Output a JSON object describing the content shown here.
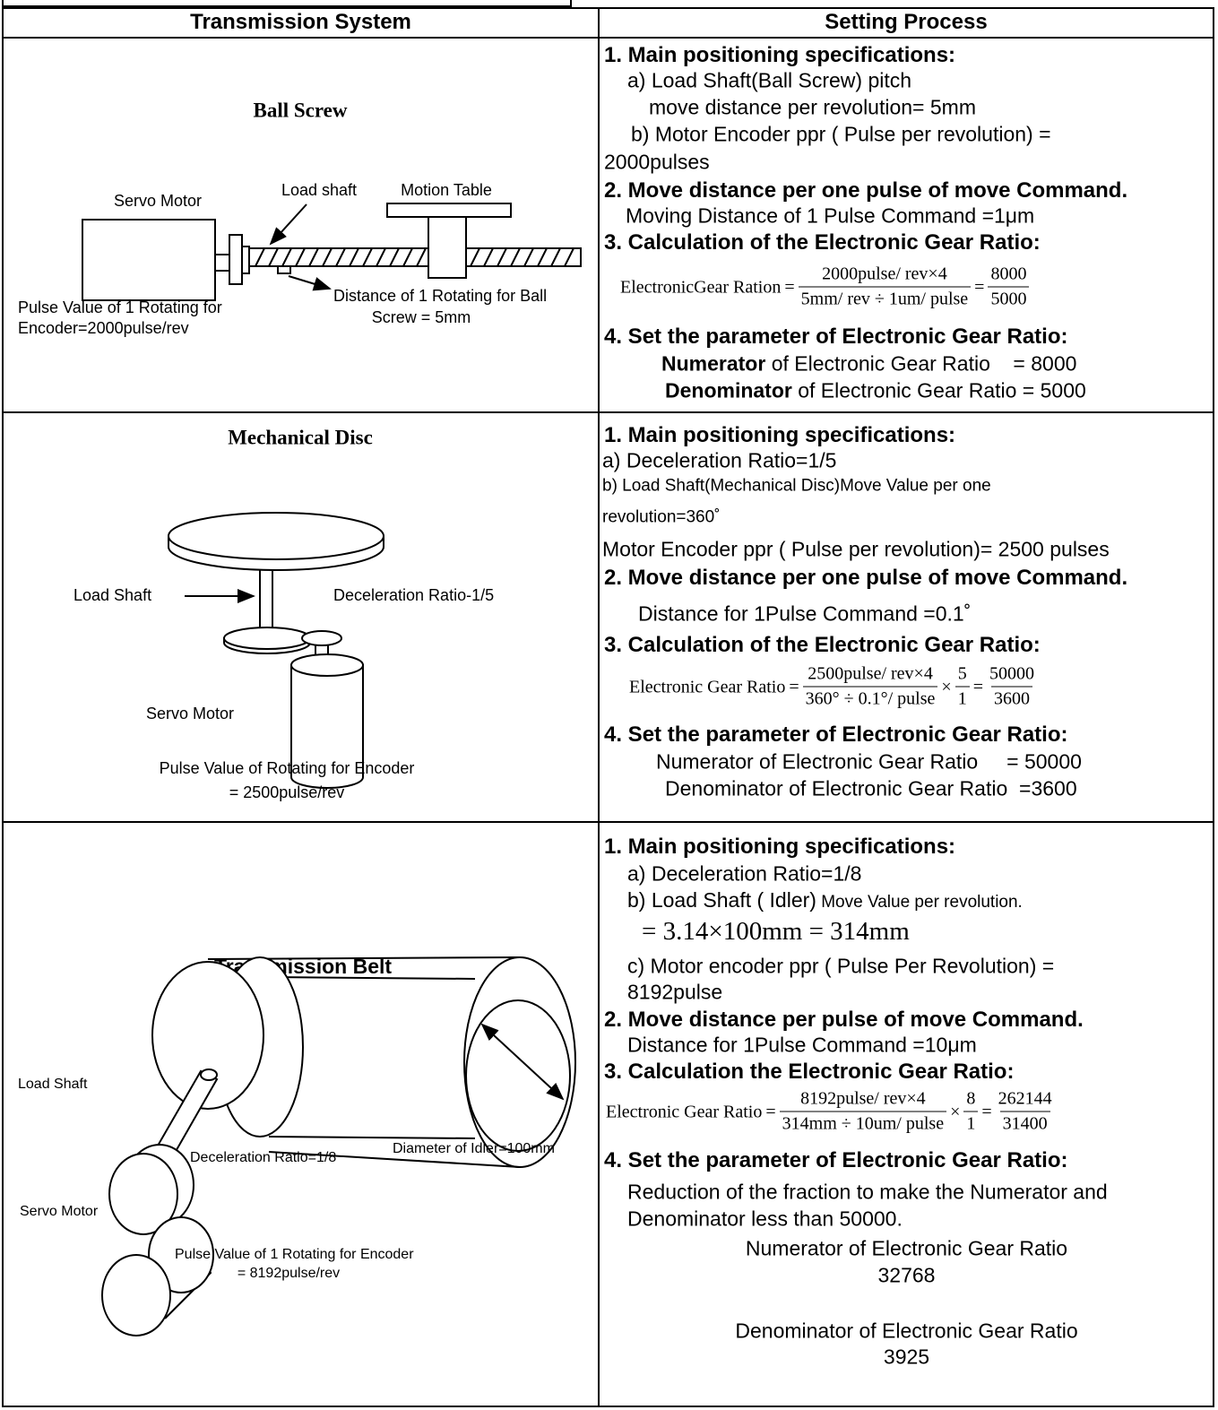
{
  "table": {
    "headers": [
      "Transmission System",
      "Setting Process"
    ],
    "rows": [
      {
        "system": {
          "title": "Ball Screw",
          "labels": [
            "Servo Motor",
            "Load shaft",
            "Motion Table",
            "Pulse Value of 1 Rotating for",
            "Encoder=2000pulse/rev",
            "Distance of 1 Rotating for Ball",
            "Screw = 5mm"
          ]
        },
        "process": [
          "1. Main positioning specifications:",
          "a) Load Shaft(Ball Screw) pitch",
          "move distance per revolution= 5mm",
          "b) Motor Encoder ppr ( Pulse per revolution) =",
          "2000pulses",
          "2. Move distance per one pulse of move Command.",
          "Moving Distance of 1 Pulse Command =1μm",
          "3. Calculation of the Electronic Gear Ratio:",
          {
            "formula": {
              "label": "ElectronicGear Ration",
              "ops": [
                "=",
                "="
              ],
              "terms": [
                [
                  "2000pulse/ rev×4",
                  "5mm/ rev ÷ 1um/ pulse"
                ],
                [
                  "8000",
                  "5000"
                ]
              ]
            }
          },
          "4. Set the parameter of Electronic Gear Ratio:",
          {
            "lead": "Numerator",
            "text": " of Electronic Gear Ratio    = 8000"
          },
          {
            "lead": "Denominator",
            "text": " of Electronic Gear Ratio = 5000"
          }
        ]
      },
      {
        "system": {
          "title": "Mechanical Disc",
          "labels": [
            "Load Shaft",
            "Deceleration Ratio-1/5",
            "Servo Motor",
            "Pulse Value of Rotating for Encoder",
            "= 2500pulse/rev"
          ]
        },
        "process": [
          "1. Main positioning specifications:",
          "a) Deceleration Ratio=1/5",
          "b) Load Shaft(Mechanical Disc)Move Value per one",
          "revolution=360˚",
          "Motor Encoder ppr ( Pulse per revolution)= 2500 pulses",
          "2. Move distance per one pulse of move Command.",
          "Distance for 1Pulse Command =0.1˚",
          "3. Calculation of the Electronic Gear Ratio:",
          {
            "formula": {
              "label": "Electronic Gear Ratio",
              "ops": [
                "=",
                "×",
                "="
              ],
              "terms": [
                [
                  "2500pulse/ rev×4",
                  "360° ÷ 0.1°/ pulse"
                ],
                [
                  "5",
                  "1"
                ],
                [
                  "50000",
                  "3600"
                ]
              ]
            }
          },
          "4. Set the parameter of Electronic Gear Ratio:",
          "Numerator of Electronic Gear Ratio     = 50000",
          "Denominator of Electronic Gear Ratio  =3600"
        ]
      },
      {
        "system": {
          "title": "Transmission Belt",
          "labels": [
            "Load Shaft",
            "Deceleration Ratio=1/8",
            "Diameter of Idler=100mm",
            "Servo Motor",
            "Pulse Value of 1 Rotating for Encoder",
            "= 8192pulse/rev"
          ]
        },
        "process": [
          "1. Main positioning specifications:",
          "a) Deceleration Ratio=1/8",
          {
            "text": "b) Load Shaft ( Idler)",
            "note": " Move Value per revolution."
          },
          "= 3.14×100mm = 314mm",
          "c) Motor encoder ppr ( Pulse Per Revolution) =",
          "8192pulse",
          "2. Move distance per pulse of move Command.",
          "Distance for 1Pulse Command =10μm",
          "3. Calculation the Electronic Gear Ratio:",
          {
            "formula": {
              "label": "Electronic Gear Ratio",
              "ops": [
                "=",
                "×",
                "="
              ],
              "terms": [
                [
                  "8192pulse/ rev×4",
                  "314mm ÷ 10um/ pulse"
                ],
                [
                  "8",
                  "1"
                ],
                [
                  "262144",
                  "31400"
                ]
              ]
            }
          },
          "4. Set the parameter of Electronic Gear Ratio:",
          "Reduction of the fraction to make the Numerator and",
          "Denominator less than 50000.",
          "Numerator of Electronic Gear Ratio",
          "32768",
          "Denominator of Electronic Gear Ratio",
          "3925"
        ]
      }
    ]
  }
}
